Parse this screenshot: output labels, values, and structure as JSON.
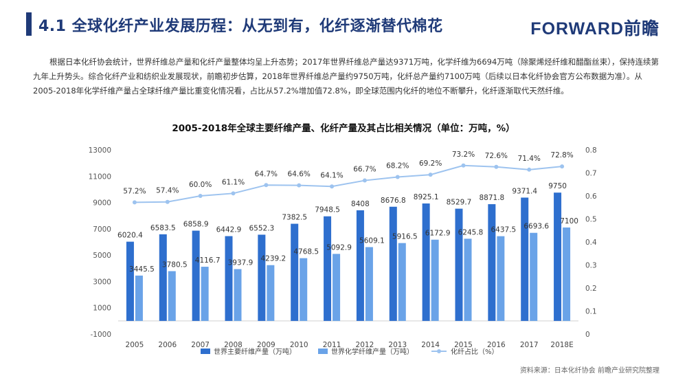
{
  "header": {
    "title": "4.1 全球化纤产业发展历程：从无到有，化纤逐渐替代棉花",
    "logo_text": "FORWARD前瞻",
    "brand_color": "#1f3a78"
  },
  "intro": {
    "text": "根据日本化纤协会统计，世界纤维总产量和化纤产量整体均呈上升态势；2017年世界纤维总产量达9371万吨，化学纤维为6694万吨（除聚烯烃纤维和醋酯丝束），保持连续第九年上升势头。综合化纤产业和纺织业发展现状，前瞻初步估算，2018年世界纤维总产量约9750万吨，化纤总产量约7100万吨（后续以日本化纤协会官方公布数据为准）。从2005-2018年化学纤维产量占全球纤维产量比重变化情况看，占比从57.2%增加值72.8%，即全球范围内化纤的地位不断攀升，化纤逐渐取代天然纤维。"
  },
  "source": {
    "text": "资料来源：日本化纤协会 前瞻产业研究院整理"
  },
  "chart_data": {
    "type": "bar",
    "title": "2005-2018年全球主要纤维产量、化纤产量及其占比相关情况（单位：万吨，%）",
    "categories": [
      "2005",
      "2006",
      "2007",
      "2008",
      "2009",
      "2010",
      "2011",
      "2012",
      "2013",
      "2014",
      "2015",
      "2016",
      "2017",
      "2018E"
    ],
    "series": [
      {
        "name": "世界主要纤维产量（万吨）",
        "type": "bar",
        "axis": "left",
        "color": "#2e6fce",
        "values": [
          6020.4,
          6583.5,
          6858.9,
          6442.9,
          6552.3,
          7382.5,
          7948.5,
          8408,
          8676.8,
          8925.1,
          8529.7,
          8871.8,
          9371.4,
          9750
        ],
        "labels": [
          "6020.4",
          "6583.5",
          "6858.9",
          "6442.9",
          "6552.3",
          "7382.5",
          "7948.5",
          "8408",
          "8676.8",
          "8925.1",
          "8529.7",
          "8871.8",
          "9371.4",
          "9750"
        ]
      },
      {
        "name": "世界化学纤维产量（万吨）",
        "type": "bar",
        "axis": "left",
        "color": "#6aa3e8",
        "values": [
          3445.5,
          3780.5,
          4116.7,
          3937.9,
          4239.2,
          4768.5,
          5092.9,
          5609.1,
          5916.5,
          6172.9,
          6245.8,
          6437.5,
          6693.6,
          7100
        ],
        "labels": [
          "3445.5",
          "3780.5",
          "4116.7",
          "3937.9",
          "4239.2",
          "4768.5",
          "5092.9",
          "5609.1",
          "5916.5",
          "6172.9",
          "6245.8",
          "6437.5",
          "6693.6",
          "7100"
        ]
      },
      {
        "name": "化纤占比（%）",
        "type": "line",
        "axis": "right",
        "color": "#9dc3ef",
        "values": [
          0.572,
          0.574,
          0.6,
          0.611,
          0.647,
          0.646,
          0.641,
          0.667,
          0.682,
          0.692,
          0.732,
          0.726,
          0.714,
          0.728
        ],
        "labels": [
          "57.2%",
          "57.4%",
          "60.0%",
          "61.1%",
          "64.7%",
          "64.6%",
          "64.1%",
          "66.7%",
          "68.2%",
          "69.2%",
          "73.2%",
          "72.6%",
          "71.4%",
          "72.8%"
        ]
      }
    ],
    "y_left": {
      "min": -1000,
      "max": 13000,
      "ticks": [
        "-1000",
        "1000",
        "3000",
        "5000",
        "7000",
        "9000",
        "11000",
        "13000"
      ]
    },
    "y_right": {
      "min": 0,
      "max": 0.8,
      "ticks": [
        "0",
        "0.1",
        "0.2",
        "0.3",
        "0.4",
        "0.5",
        "0.6",
        "0.7",
        "0.8"
      ]
    },
    "grid": false,
    "legend_position": "bottom"
  }
}
